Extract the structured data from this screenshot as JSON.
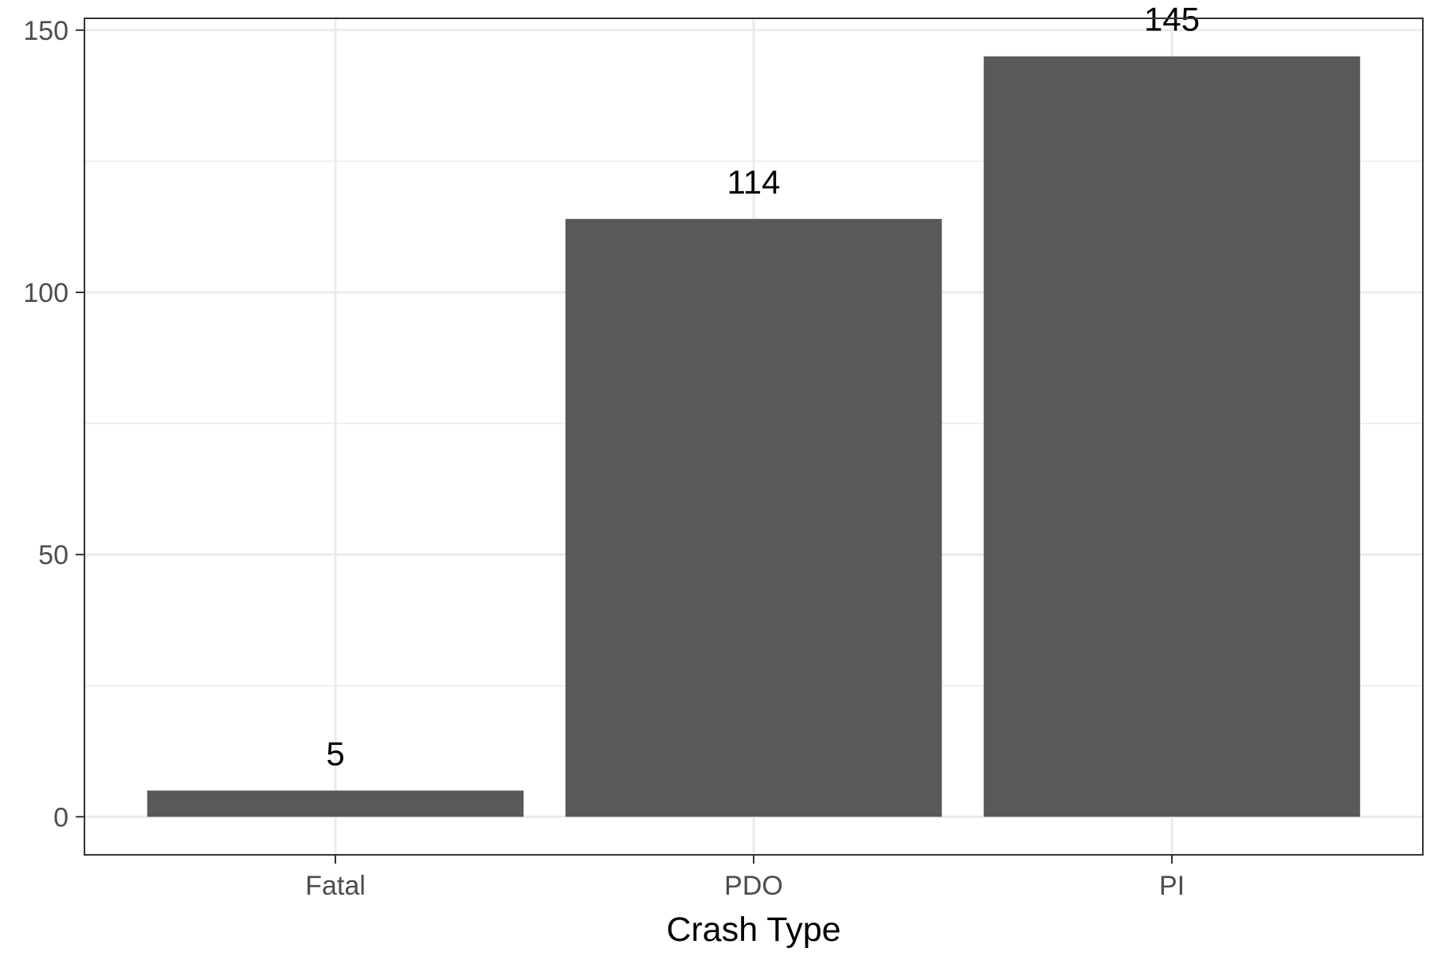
{
  "chart_data": {
    "type": "bar",
    "title": "",
    "xlabel": "Crash Type",
    "ylabel": "",
    "categories": [
      "Fatal",
      "PDO",
      "PI"
    ],
    "values": [
      5,
      114,
      145
    ],
    "data_labels": [
      "5",
      "114",
      "145"
    ],
    "ylim": [
      -7.25,
      152.25
    ],
    "yticks": [
      0,
      50,
      100,
      150
    ],
    "yminor": [
      25,
      75,
      125
    ],
    "grid": true,
    "legend": "none",
    "colors": {
      "bar": "#595959",
      "grid": "#ebebeb",
      "background": "#ffffff",
      "axis_text": "#4d4d4d"
    }
  }
}
